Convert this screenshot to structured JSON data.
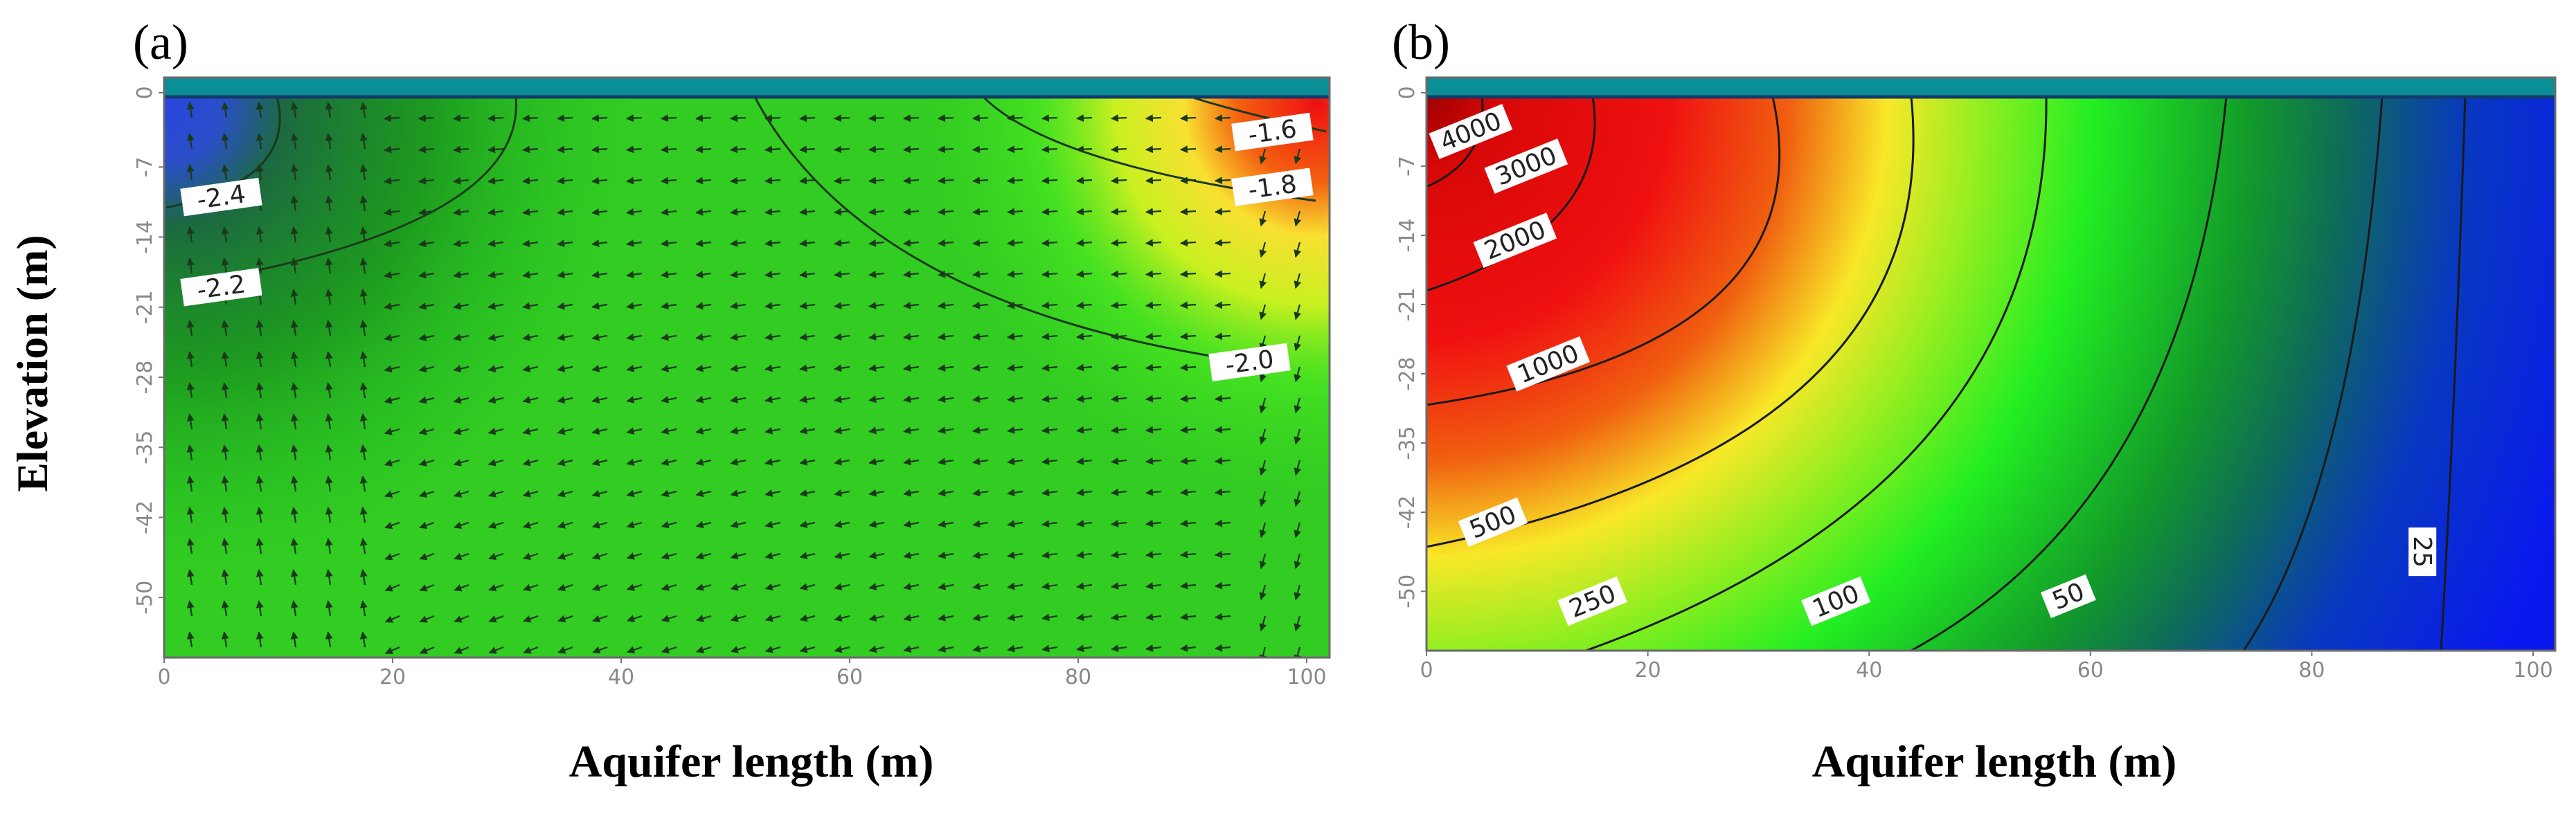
{
  "figure": {
    "ylabel": "Elevation (m)"
  },
  "chart_data": [
    {
      "type": "heatmap",
      "panel_label": "(a)",
      "xlabel": "Aquifer length (m)",
      "ylabel": "Elevation (m)",
      "xlim": [
        0,
        102
      ],
      "ylim": [
        -56,
        0
      ],
      "x_ticks": [
        "0",
        "20",
        "40",
        "60",
        "80",
        "100"
      ],
      "y_ticks": [
        "0",
        "-7",
        "-14",
        "-21",
        "-28",
        "-35",
        "-42",
        "-50"
      ],
      "contours": [
        {
          "label": "-2.4",
          "x": 5,
          "y": -10
        },
        {
          "label": "-2.2",
          "x": 5,
          "y": -19
        },
        {
          "label": "-2.0",
          "x": 95,
          "y": -26.5
        },
        {
          "label": "-1.8",
          "x": 97,
          "y": -9
        },
        {
          "label": "-1.6",
          "x": 97,
          "y": -3.5
        }
      ],
      "overlay": "velocity vectors",
      "colors": {
        "low": "#1e3fc8",
        "mid": "#33dd22",
        "high": "#ee1111"
      }
    },
    {
      "type": "heatmap",
      "panel_label": "(b)",
      "xlabel": "Aquifer length (m)",
      "ylabel": "Elevation (m)",
      "xlim": [
        0,
        102
      ],
      "ylim": [
        -56,
        0
      ],
      "x_ticks": [
        "0",
        "20",
        "40",
        "60",
        "80",
        "100"
      ],
      "y_ticks": [
        "0",
        "-7",
        "-14",
        "-21",
        "-28",
        "-35",
        "-42",
        "-50"
      ],
      "contours": [
        {
          "label": "4000",
          "x": 4,
          "y": -3.5
        },
        {
          "label": "3000",
          "x": 9,
          "y": -7
        },
        {
          "label": "2000",
          "x": 8,
          "y": -14.5
        },
        {
          "label": "1000",
          "x": 11,
          "y": -27
        },
        {
          "label": "500",
          "x": 6,
          "y": -43
        },
        {
          "label": "250",
          "x": 15,
          "y": -51
        },
        {
          "label": "100",
          "x": 37,
          "y": -51
        },
        {
          "label": "50",
          "x": 58,
          "y": -50.5
        },
        {
          "label": "25",
          "x": 90,
          "y": -46
        }
      ],
      "colors": {
        "low": "#0a22ee",
        "mid": "#22dd22",
        "high": "#ee1111"
      }
    }
  ]
}
